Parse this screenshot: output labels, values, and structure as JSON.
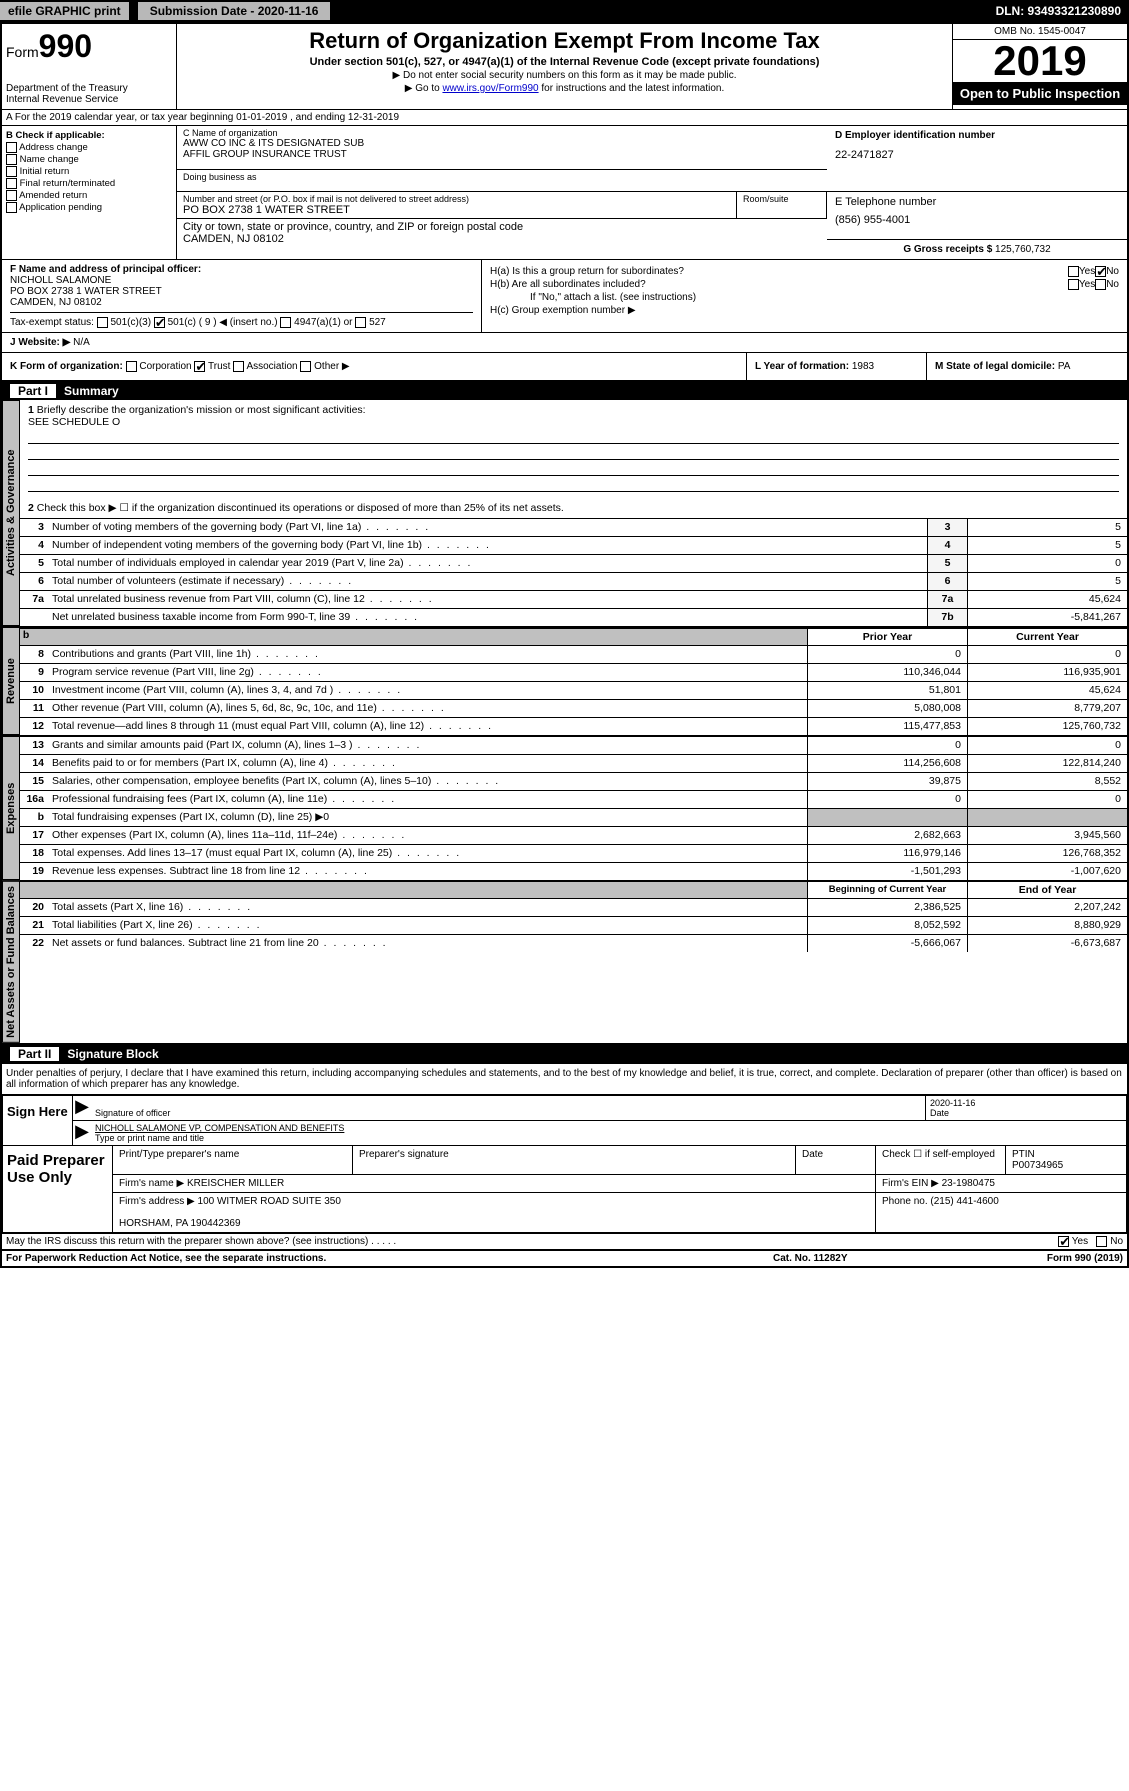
{
  "top": {
    "efile": "efile GRAPHIC print",
    "submission": "Submission Date - 2020-11-16",
    "dln": "DLN: 93493321230890"
  },
  "header": {
    "form_prefix": "Form",
    "form_num": "990",
    "title": "Return of Organization Exempt From Income Tax",
    "subtitle": "Under section 501(c), 527, or 4947(a)(1) of the Internal Revenue Code (except private foundations)",
    "ssn_line": "▶ Do not enter social security numbers on this form as it may be made public.",
    "goto_prefix": "▶ Go to ",
    "goto_link": "www.irs.gov/Form990",
    "goto_suffix": " for instructions and the latest information.",
    "dept": "Department of the Treasury\nInternal Revenue Service",
    "omb": "OMB No. 1545-0047",
    "year": "2019",
    "open": "Open to Public Inspection"
  },
  "row_a": "A For the 2019 calendar year, or tax year beginning 01-01-2019   , and ending 12-31-2019",
  "section_b": {
    "header": "B Check if applicable:",
    "items": [
      "Address change",
      "Name change",
      "Initial return",
      "Final return/terminated",
      "Amended return",
      "Application pending"
    ]
  },
  "section_c": {
    "name_label": "C Name of organization",
    "name": "AWW CO INC & ITS DESIGNATED SUB\nAFFIL GROUP INSURANCE TRUST",
    "dba_label": "Doing business as",
    "addr_label": "Number and street (or P.O. box if mail is not delivered to street address)",
    "room_label": "Room/suite",
    "addr": "PO BOX 2738 1 WATER STREET",
    "city_label": "City or town, state or province, country, and ZIP or foreign postal code",
    "city": "CAMDEN, NJ  08102"
  },
  "section_d": {
    "label": "D Employer identification number",
    "ein": "22-2471827"
  },
  "section_e": {
    "label": "E Telephone number",
    "phone": "(856) 955-4001"
  },
  "section_g": {
    "label": "G Gross receipts $",
    "amount": "125,760,732"
  },
  "section_f": {
    "label": "F Name and address of principal officer:",
    "name": "NICHOLL SALAMONE",
    "addr": "PO BOX 2738 1 WATER STREET\nCAMDEN, NJ  08102"
  },
  "section_h": {
    "ha": "H(a)  Is this a group return for subordinates?",
    "hb": "H(b)  Are all subordinates included?",
    "hb_note": "If \"No,\" attach a list. (see instructions)",
    "hc": "H(c)  Group exemption number ▶"
  },
  "section_i": {
    "label": "Tax-exempt status:",
    "opts": [
      "501(c)(3)",
      "501(c) ( 9 ) ◀ (insert no.)",
      "4947(a)(1) or",
      "527"
    ]
  },
  "section_j": {
    "label": "J Website: ▶",
    "value": "N/A"
  },
  "section_k": {
    "label": "K Form of organization:",
    "opts": [
      "Corporation",
      "Trust",
      "Association",
      "Other ▶"
    ]
  },
  "section_l": {
    "label": "L Year of formation:",
    "value": "1983"
  },
  "section_m": {
    "label": "M State of legal domicile:",
    "value": "PA"
  },
  "part1": {
    "title": "Summary",
    "tab_gov": "Activities & Governance",
    "tab_rev": "Revenue",
    "tab_exp": "Expenses",
    "tab_net": "Net Assets or Fund Balances",
    "line1": "Briefly describe the organization's mission or most significant activities:",
    "line1_val": "SEE SCHEDULE O",
    "line2": "Check this box ▶ ☐  if the organization discontinued its operations or disposed of more than 25% of its net assets.",
    "prior_header": "Prior Year",
    "current_header": "Current Year",
    "boy_header": "Beginning of Current Year",
    "eoy_header": "End of Year",
    "rows_single": [
      {
        "n": "3",
        "d": "Number of voting members of the governing body (Part VI, line 1a)",
        "c": "3",
        "v": "5"
      },
      {
        "n": "4",
        "d": "Number of independent voting members of the governing body (Part VI, line 1b)",
        "c": "4",
        "v": "5"
      },
      {
        "n": "5",
        "d": "Total number of individuals employed in calendar year 2019 (Part V, line 2a)",
        "c": "5",
        "v": "0"
      },
      {
        "n": "6",
        "d": "Total number of volunteers (estimate if necessary)",
        "c": "6",
        "v": "5"
      },
      {
        "n": "7a",
        "d": "Total unrelated business revenue from Part VIII, column (C), line 12",
        "c": "7a",
        "v": "45,624"
      },
      {
        "n": "",
        "d": "Net unrelated business taxable income from Form 990-T, line 39",
        "c": "7b",
        "v": "-5,841,267"
      }
    ],
    "rows_rev": [
      {
        "n": "8",
        "d": "Contributions and grants (Part VIII, line 1h)",
        "p": "0",
        "c": "0"
      },
      {
        "n": "9",
        "d": "Program service revenue (Part VIII, line 2g)",
        "p": "110,346,044",
        "c": "116,935,901"
      },
      {
        "n": "10",
        "d": "Investment income (Part VIII, column (A), lines 3, 4, and 7d )",
        "p": "51,801",
        "c": "45,624"
      },
      {
        "n": "11",
        "d": "Other revenue (Part VIII, column (A), lines 5, 6d, 8c, 9c, 10c, and 11e)",
        "p": "5,080,008",
        "c": "8,779,207"
      },
      {
        "n": "12",
        "d": "Total revenue—add lines 8 through 11 (must equal Part VIII, column (A), line 12)",
        "p": "115,477,853",
        "c": "125,760,732"
      }
    ],
    "rows_exp": [
      {
        "n": "13",
        "d": "Grants and similar amounts paid (Part IX, column (A), lines 1–3 )",
        "p": "0",
        "c": "0"
      },
      {
        "n": "14",
        "d": "Benefits paid to or for members (Part IX, column (A), line 4)",
        "p": "114,256,608",
        "c": "122,814,240"
      },
      {
        "n": "15",
        "d": "Salaries, other compensation, employee benefits (Part IX, column (A), lines 5–10)",
        "p": "39,875",
        "c": "8,552"
      },
      {
        "n": "16a",
        "d": "Professional fundraising fees (Part IX, column (A), line 11e)",
        "p": "0",
        "c": "0"
      },
      {
        "n": "b",
        "d": "Total fundraising expenses (Part IX, column (D), line 25) ▶0",
        "p": "",
        "c": "",
        "shaded": true
      },
      {
        "n": "17",
        "d": "Other expenses (Part IX, column (A), lines 11a–11d, 11f–24e)",
        "p": "2,682,663",
        "c": "3,945,560"
      },
      {
        "n": "18",
        "d": "Total expenses. Add lines 13–17 (must equal Part IX, column (A), line 25)",
        "p": "116,979,146",
        "c": "126,768,352"
      },
      {
        "n": "19",
        "d": "Revenue less expenses. Subtract line 18 from line 12",
        "p": "-1,501,293",
        "c": "-1,007,620"
      }
    ],
    "rows_net": [
      {
        "n": "20",
        "d": "Total assets (Part X, line 16)",
        "p": "2,386,525",
        "c": "2,207,242"
      },
      {
        "n": "21",
        "d": "Total liabilities (Part X, line 26)",
        "p": "8,052,592",
        "c": "8,880,929"
      },
      {
        "n": "22",
        "d": "Net assets or fund balances. Subtract line 21 from line 20",
        "p": "-5,666,067",
        "c": "-6,673,687"
      }
    ]
  },
  "part2": {
    "title": "Signature Block",
    "perjury": "Under penalties of perjury, I declare that I have examined this return, including accompanying schedules and statements, and to the best of my knowledge and belief, it is true, correct, and complete. Declaration of preparer (other than officer) is based on all information of which preparer has any knowledge.",
    "sign_here": "Sign Here",
    "sig_officer": "Signature of officer",
    "sig_date": "2020-11-16",
    "date_label": "Date",
    "officer_name": "NICHOLL SALAMONE  VP, COMPENSATION AND BENEFITS",
    "type_label": "Type or print name and title",
    "paid": "Paid Preparer Use Only",
    "prep_name_label": "Print/Type preparer's name",
    "prep_sig_label": "Preparer's signature",
    "prep_date_label": "Date",
    "self_emp": "Check ☐ if self-employed",
    "ptin_label": "PTIN",
    "ptin": "P00734965",
    "firm_name_label": "Firm's name    ▶",
    "firm_name": "KREISCHER MILLER",
    "firm_ein_label": "Firm's EIN ▶",
    "firm_ein": "23-1980475",
    "firm_addr_label": "Firm's address ▶",
    "firm_addr": "100 WITMER ROAD SUITE 350\n\nHORSHAM, PA  190442369",
    "phone_label": "Phone no.",
    "phone": "(215) 441-4600",
    "discuss": "May the IRS discuss this return with the preparer shown above? (see instructions)",
    "paperwork": "For Paperwork Reduction Act Notice, see the separate instructions.",
    "cat": "Cat. No. 11282Y",
    "form_foot": "Form 990 (2019)"
  }
}
